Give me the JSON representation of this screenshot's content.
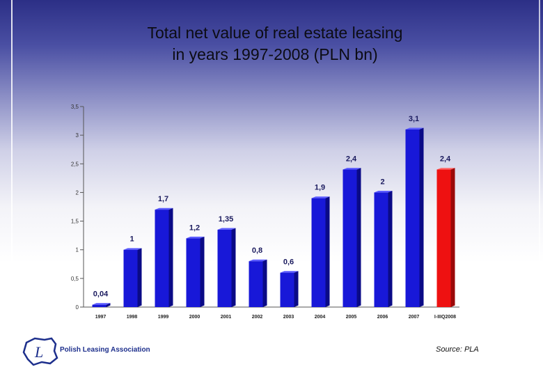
{
  "title_line1": "Total net value of real estate leasing",
  "title_line2": "in years 1997-2008 (PLN bn)",
  "source": "Source: PLA",
  "logo": {
    "text": "Polish Leasing Association",
    "icon": "polish-map-logo-icon"
  },
  "colors": {
    "bar_blue": "#1818d8",
    "bar_red": "#ee1111",
    "axis": "#555555"
  },
  "chart_data": {
    "type": "bar",
    "categories": [
      "1997",
      "1998",
      "1999",
      "2000",
      "2001",
      "2002",
      "2003",
      "2004",
      "2005",
      "2006",
      "2007",
      "I-IIIQ2008"
    ],
    "values": [
      0.04,
      1,
      1.7,
      1.2,
      1.35,
      0.8,
      0.6,
      1.9,
      2.4,
      2,
      3.1,
      2.4
    ],
    "value_labels": [
      "0,04",
      "1",
      "1,7",
      "1,2",
      "1,35",
      "0,8",
      "0,6",
      "1,9",
      "2,4",
      "2",
      "3,1",
      "2,4"
    ],
    "highlight_index": 11,
    "ylim": [
      0,
      3.5
    ],
    "yticks": [
      0,
      0.5,
      1,
      1.5,
      2,
      2.5,
      3,
      3.5
    ],
    "ytick_labels": [
      "0",
      "0,5",
      "1",
      "1,5",
      "2",
      "2,5",
      "3",
      "3,5"
    ],
    "grid": false,
    "style": "3d"
  }
}
